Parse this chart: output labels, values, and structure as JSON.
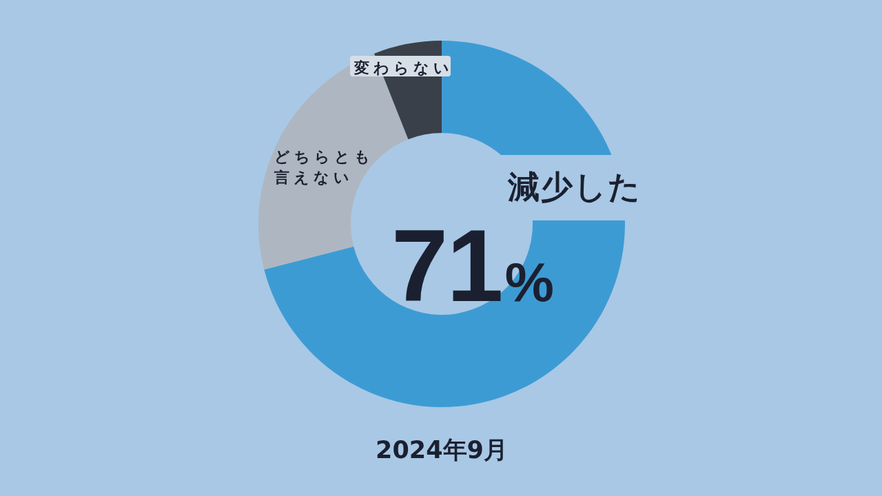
{
  "chart_data": {
    "type": "donut",
    "title": "2024年9月",
    "categories": [
      "減少した",
      "どちらとも言えない",
      "変わらない"
    ],
    "values": [
      71,
      23,
      6
    ],
    "colors": [
      "#3d9bd4",
      "#aeb7c1",
      "#3a4049"
    ],
    "value_labels": [
      "71%",
      null,
      null
    ]
  }
}
